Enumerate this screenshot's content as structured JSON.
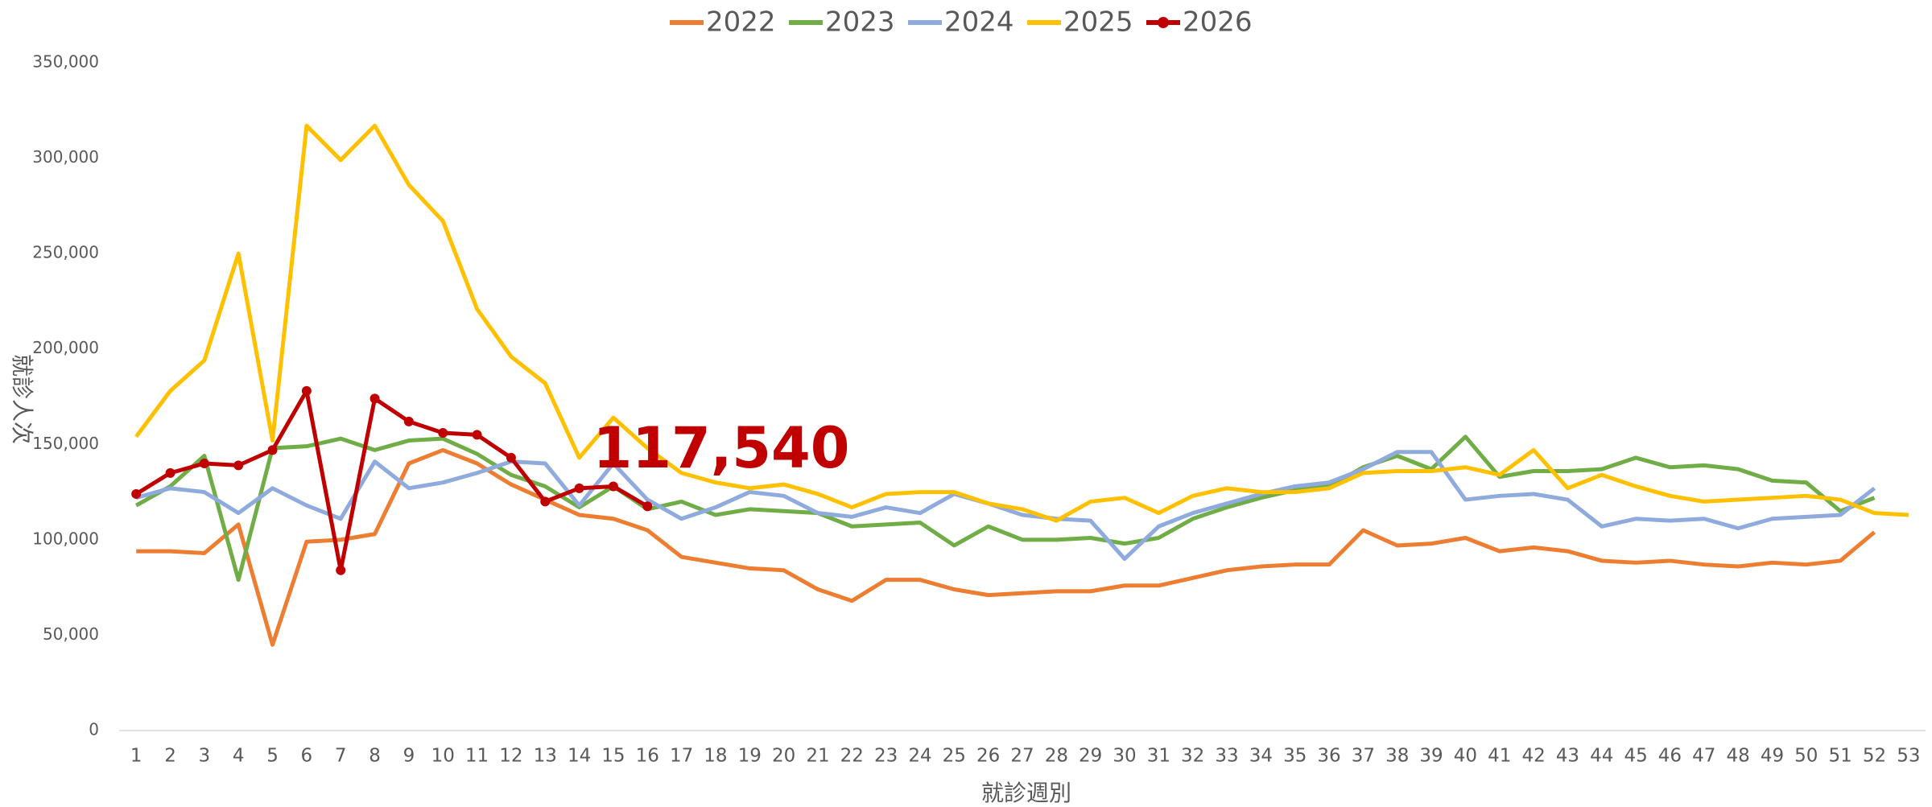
{
  "chart_data": {
    "type": "line",
    "x_label": "就診週別",
    "y_label": "就診人次",
    "x": [
      1,
      2,
      3,
      4,
      5,
      6,
      7,
      8,
      9,
      10,
      11,
      12,
      13,
      14,
      15,
      16,
      17,
      18,
      19,
      20,
      21,
      22,
      23,
      24,
      25,
      26,
      27,
      28,
      29,
      30,
      31,
      32,
      33,
      34,
      35,
      36,
      37,
      38,
      39,
      40,
      41,
      42,
      43,
      44,
      45,
      46,
      47,
      48,
      49,
      50,
      51,
      52,
      53
    ],
    "xlim": [
      0.5,
      53.5
    ],
    "ylim": [
      0,
      350000
    ],
    "yticks": [
      0,
      {
        "value": 50000,
        "label": "50,000"
      },
      {
        "value": 100000,
        "label": "100,000"
      },
      {
        "value": 150000,
        "label": "150,000"
      },
      {
        "value": 200000,
        "label": "200,000"
      },
      {
        "value": 250000,
        "label": "250,000"
      },
      {
        "value": 300000,
        "label": "300,000"
      },
      {
        "value": 350000,
        "label": "350,000"
      }
    ],
    "grid": false,
    "legend": "top",
    "series": [
      {
        "name": "2022",
        "color": "#ed7d31",
        "marker": false,
        "values": [
          94000,
          94000,
          93000,
          108000,
          45000,
          99000,
          100000,
          103000,
          140000,
          147000,
          140000,
          129000,
          121000,
          113000,
          111000,
          105000,
          91000,
          88000,
          85000,
          84000,
          74000,
          68000,
          79000,
          79000,
          74000,
          71000,
          72000,
          73000,
          73000,
          76000,
          76000,
          80000,
          84000,
          86000,
          87000,
          87000,
          105000,
          97000,
          98000,
          101000,
          94000,
          96000,
          94000,
          89000,
          88000,
          89000,
          87000,
          86000,
          88000,
          87000,
          89000,
          104000,
          null
        ]
      },
      {
        "name": "2023",
        "color": "#70ad47",
        "marker": false,
        "values": [
          118000,
          128000,
          144000,
          79000,
          148000,
          149000,
          153000,
          147000,
          152000,
          153000,
          145000,
          134000,
          128000,
          117000,
          128000,
          116000,
          120000,
          113000,
          116000,
          115000,
          114000,
          107000,
          108000,
          109000,
          97000,
          107000,
          100000,
          100000,
          101000,
          98000,
          101000,
          111000,
          117000,
          122000,
          126000,
          128000,
          138000,
          144000,
          137000,
          154000,
          133000,
          136000,
          136000,
          137000,
          143000,
          138000,
          139000,
          137000,
          131000,
          130000,
          115000,
          122000,
          null
        ]
      },
      {
        "name": "2024",
        "color": "#8faadc",
        "marker": false,
        "values": [
          122000,
          127000,
          125000,
          114000,
          127000,
          118000,
          111000,
          141000,
          127000,
          130000,
          135000,
          141000,
          140000,
          118000,
          140000,
          121000,
          111000,
          117000,
          125000,
          123000,
          114000,
          112000,
          117000,
          114000,
          124000,
          119000,
          113000,
          111000,
          110000,
          90000,
          107000,
          114000,
          119000,
          124000,
          128000,
          130000,
          137000,
          146000,
          146000,
          121000,
          123000,
          124000,
          121000,
          107000,
          111000,
          110000,
          111000,
          106000,
          111000,
          112000,
          113000,
          127000,
          null
        ]
      },
      {
        "name": "2025",
        "color": "#ffc000",
        "marker": false,
        "values": [
          154000,
          178000,
          194000,
          250000,
          152000,
          317000,
          299000,
          317000,
          286000,
          267000,
          221000,
          196000,
          182000,
          143000,
          164000,
          148000,
          135000,
          130000,
          127000,
          129000,
          124000,
          117000,
          124000,
          125000,
          125000,
          119000,
          116000,
          110000,
          120000,
          122000,
          114000,
          123000,
          127000,
          125000,
          125000,
          127000,
          135000,
          136000,
          136000,
          138000,
          134000,
          147000,
          127000,
          134000,
          128000,
          123000,
          120000,
          121000,
          122000,
          123000,
          121000,
          114000,
          113000
        ]
      },
      {
        "name": "2026",
        "color": "#c00000",
        "marker": true,
        "values": [
          124000,
          135000,
          140000,
          139000,
          147000,
          178000,
          84000,
          174000,
          162000,
          156000,
          155000,
          143000,
          120000,
          127000,
          128000,
          117540,
          null,
          null,
          null,
          null,
          null,
          null,
          null,
          null,
          null,
          null,
          null,
          null,
          null,
          null,
          null,
          null,
          null,
          null,
          null,
          null,
          null,
          null,
          null,
          null,
          null,
          null,
          null,
          null,
          null,
          null,
          null,
          null,
          null,
          null,
          null,
          null,
          null
        ]
      }
    ],
    "annotation": "117,540"
  }
}
